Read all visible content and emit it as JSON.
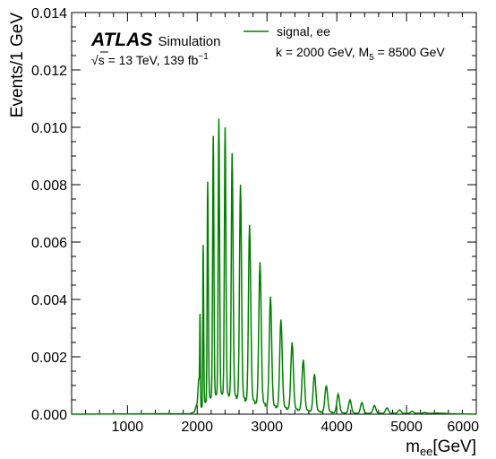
{
  "chart_data": {
    "type": "line",
    "xlabel": "m",
    "xlabel_sub": "ee",
    "xlabel_unit": "[GeV]",
    "ylabel": "Events/1 GeV",
    "xlim": [
      200,
      6000
    ],
    "ylim": [
      0,
      0.014
    ],
    "x_ticks": [
      1000,
      2000,
      3000,
      4000,
      5000,
      6000
    ],
    "y_ticks": [
      "0.000",
      "0.002",
      "0.004",
      "0.006",
      "0.008",
      "0.010",
      "0.012",
      "0.014"
    ],
    "x_tick_labels": [
      "1000",
      "2000",
      "3000",
      "4000",
      "5000",
      "6000"
    ],
    "grid": false,
    "legend": "top-right",
    "series": [
      {
        "name": "signal, ee",
        "color": "#008000",
        "onset_x": 2000,
        "peaks": [
          {
            "x": 2040,
            "y": 0.0035
          },
          {
            "x": 2085,
            "y": 0.0059
          },
          {
            "x": 2150,
            "y": 0.0081
          },
          {
            "x": 2230,
            "y": 0.0097
          },
          {
            "x": 2310,
            "y": 0.0103
          },
          {
            "x": 2400,
            "y": 0.01
          },
          {
            "x": 2500,
            "y": 0.0091
          },
          {
            "x": 2620,
            "y": 0.008
          },
          {
            "x": 2750,
            "y": 0.0066
          },
          {
            "x": 2900,
            "y": 0.0053
          },
          {
            "x": 3050,
            "y": 0.0041
          },
          {
            "x": 3200,
            "y": 0.0033
          },
          {
            "x": 3360,
            "y": 0.0025
          },
          {
            "x": 3520,
            "y": 0.0019
          },
          {
            "x": 3680,
            "y": 0.0014
          },
          {
            "x": 3850,
            "y": 0.001
          },
          {
            "x": 4020,
            "y": 0.0007
          },
          {
            "x": 4190,
            "y": 0.0005
          },
          {
            "x": 4360,
            "y": 0.0004
          },
          {
            "x": 4540,
            "y": 0.0003
          },
          {
            "x": 4720,
            "y": 0.00022
          },
          {
            "x": 4900,
            "y": 0.00015
          },
          {
            "x": 5080,
            "y": 0.0001
          },
          {
            "x": 5260,
            "y": 6e-05
          },
          {
            "x": 5440,
            "y": 4e-05
          }
        ]
      }
    ]
  },
  "annotations": {
    "atlas": "ATLAS",
    "simulation": "Simulation",
    "sqrt_symbol": "√",
    "sqrt_s": "s",
    "energy_text": " = 13 TeV, 139 fb",
    "lumi_exp": "−1",
    "model_k": "k = 2000 GeV, M",
    "model_sub": "5",
    "model_rest": " = 8500 GeV"
  }
}
